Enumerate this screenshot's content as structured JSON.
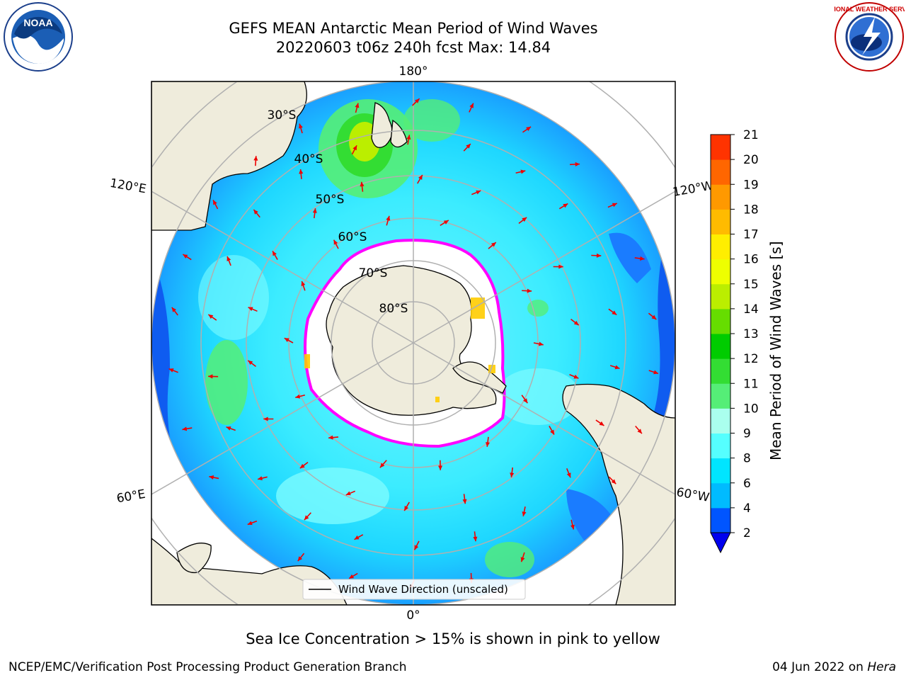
{
  "header": {
    "title_line1": "GEFS MEAN Antarctic Mean Period of Wind Waves",
    "title_line2": "20220603 t06z 240h fcst   Max: 14.84"
  },
  "logos": {
    "left": {
      "name": "noaa-logo",
      "text": "NOAA"
    },
    "right": {
      "name": "national-weather-service-logo",
      "text": "NATIONAL WEATHER SERVICE"
    }
  },
  "map": {
    "projection": "south-polar-stereographic",
    "longitude_labels": [
      "180°",
      "120°E",
      "120°W",
      "60°E",
      "60°W",
      "0°"
    ],
    "latitude_labels": [
      "30°S",
      "40°S",
      "50°S",
      "60°S",
      "70°S",
      "80°S"
    ],
    "legend": {
      "label": "Wind Wave Direction (unscaled)"
    },
    "colors": {
      "land": "#efecdc",
      "sea_ice_low": "#ff00ff",
      "sea_ice_high": "#ffcc00",
      "arrow": "#ee0000",
      "graticule": "#b0b0b0"
    }
  },
  "colorbar": {
    "label": "Mean Period of Wind Waves [s]",
    "ticks": [
      "2",
      "4",
      "6",
      "8",
      "9",
      "10",
      "11",
      "12",
      "13",
      "14",
      "15",
      "16",
      "17",
      "18",
      "19",
      "20",
      "21"
    ],
    "colors": [
      "#0055ff",
      "#00bbff",
      "#00e5ff",
      "#55ffff",
      "#aaffee",
      "#55ee77",
      "#33dd33",
      "#00cc00",
      "#66dd00",
      "#bbee00",
      "#eeff00",
      "#ffee00",
      "#ffbb00",
      "#ff9900",
      "#ff6600",
      "#ff3300",
      "#ff0000"
    ],
    "under_color": "#0000ee"
  },
  "notes": {
    "sea_ice": "Sea Ice Concentration > 15% is shown in pink to yellow"
  },
  "footer": {
    "left": "NCEP/EMC/Verification Post Processing Product Generation Branch",
    "right_prefix": "04 Jun 2022 on ",
    "right_host": "Hera"
  }
}
